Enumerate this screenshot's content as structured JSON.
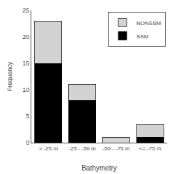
{
  "chart_data": {
    "type": "bar",
    "stacked": true,
    "categories": [
      "> -25 m",
      "-25 - -50 m",
      "-50 - -75 m",
      "<= -75 m"
    ],
    "series": [
      {
        "name": "SSM",
        "color": "#000000",
        "values": [
          15,
          8,
          0,
          1
        ]
      },
      {
        "name": "NONSSM",
        "color": "#d3d3d3",
        "values": [
          8,
          3,
          1,
          2.5
        ]
      }
    ],
    "xlabel": "Bathymetry",
    "ylabel": "Frequency",
    "ylim": [
      0,
      25
    ],
    "yticks": [
      0,
      5,
      10,
      15,
      20,
      25
    ],
    "grid": false,
    "legend": "upper right"
  }
}
